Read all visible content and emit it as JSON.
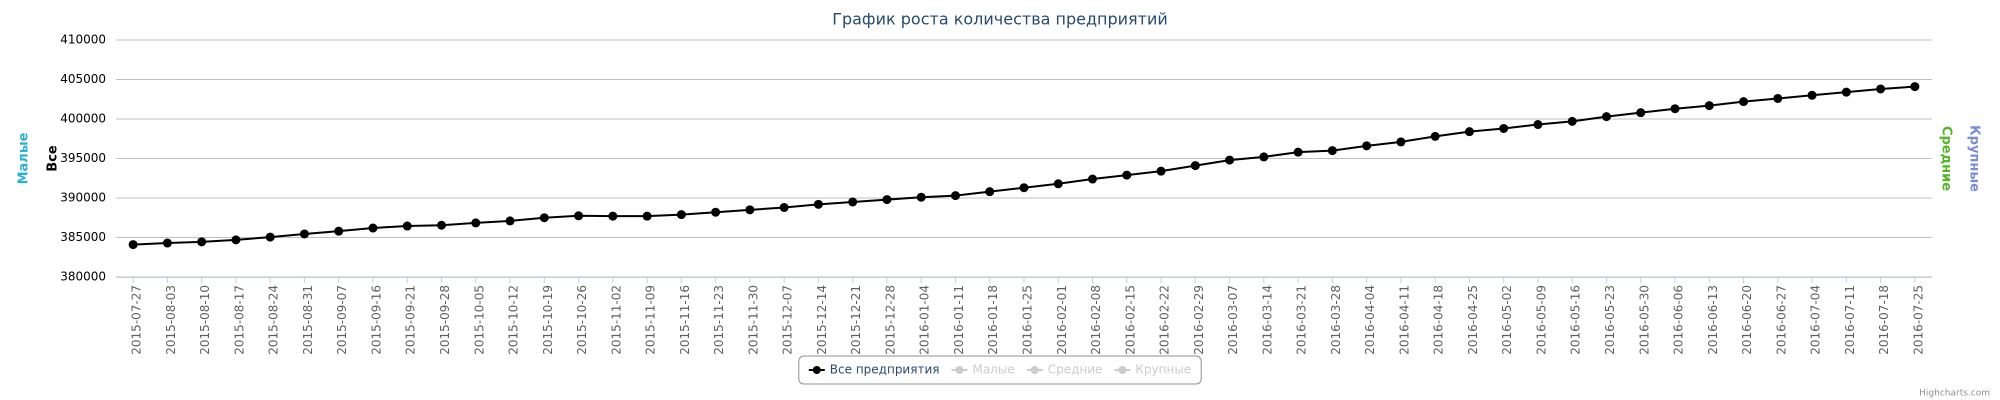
{
  "chart_data": {
    "type": "line",
    "title": "График роста количества предприятий",
    "categories": [
      "2015-07-27",
      "2015-08-03",
      "2015-08-10",
      "2015-08-17",
      "2015-08-24",
      "2015-08-31",
      "2015-09-07",
      "2015-09-16",
      "2015-09-21",
      "2015-09-28",
      "2015-10-05",
      "2015-10-12",
      "2015-10-19",
      "2015-10-26",
      "2015-11-02",
      "2015-11-09",
      "2015-11-16",
      "2015-11-23",
      "2015-11-30",
      "2015-12-07",
      "2015-12-14",
      "2015-12-21",
      "2015-12-28",
      "2016-01-04",
      "2016-01-11",
      "2016-01-18",
      "2016-01-25",
      "2016-02-01",
      "2016-02-08",
      "2016-02-15",
      "2016-02-22",
      "2016-02-29",
      "2016-03-07",
      "2016-03-14",
      "2016-03-21",
      "2016-03-28",
      "2016-04-04",
      "2016-04-11",
      "2016-04-18",
      "2016-04-25",
      "2016-05-02",
      "2016-05-09",
      "2016-05-16",
      "2016-05-23",
      "2016-05-30",
      "2016-06-06",
      "2016-06-13",
      "2016-06-20",
      "2016-06-27",
      "2016-07-04",
      "2016-07-11",
      "2016-07-18",
      "2016-07-25"
    ],
    "series": [
      {
        "name": "Все предприятия",
        "color": "#000000",
        "values": [
          384100,
          384300,
          384450,
          384700,
          385050,
          385450,
          385800,
          386200,
          386450,
          386550,
          386850,
          387100,
          387500,
          387750,
          387700,
          387700,
          387900,
          388200,
          388500,
          388800,
          389200,
          389500,
          389800,
          390100,
          390300,
          390800,
          391300,
          391800,
          392400,
          392900,
          393400,
          394100,
          394800,
          395200,
          395800,
          396000,
          396600,
          397100,
          397800,
          398400,
          398800,
          399300,
          399700,
          400300,
          400800,
          401300,
          401700,
          402200,
          402600,
          403000,
          403400,
          403800,
          404100
        ]
      }
    ],
    "hidden_legend": [
      "Малые",
      "Средние",
      "Крупные"
    ],
    "left_axis_titles": [
      {
        "text": "Малые",
        "color": "#2ab0d2"
      },
      {
        "text": "Все",
        "color": "#000000"
      }
    ],
    "right_axis_titles": [
      {
        "text": "Средние",
        "color": "#52b52a"
      },
      {
        "text": "Крупные",
        "color": "#7a8cd6"
      }
    ],
    "ylim": [
      380000,
      410000
    ],
    "yticks": [
      380000,
      385000,
      390000,
      395000,
      400000,
      405000,
      410000
    ],
    "grid": true,
    "credit": "Highcharts.com"
  }
}
